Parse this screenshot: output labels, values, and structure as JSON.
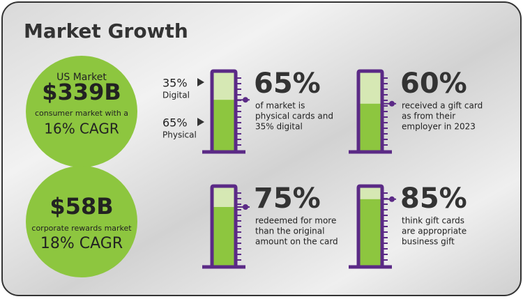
{
  "title": "Market Growth",
  "circles": [
    {
      "lines": [
        "US Market",
        "$339B",
        "consumer market with a",
        "16% CAGR"
      ]
    },
    {
      "lines": [
        "$58B",
        "corporate rewards market",
        "18% CAGR"
      ]
    }
  ],
  "gauge_labels": [
    {
      "percent": "35%",
      "name": "Digital"
    },
    {
      "percent": "65%",
      "name": "Physical"
    }
  ],
  "gauges": [
    {
      "value": 65,
      "label": "65%",
      "desc": [
        "of market is",
        "physical cards and",
        "35% digital"
      ]
    },
    {
      "value": 60,
      "label": "60%",
      "desc": [
        "received a gift card",
        "as from their",
        "employer in 2023"
      ]
    },
    {
      "value": 75,
      "label": "75%",
      "desc": [
        "redeemed for more",
        "than the original",
        "amount on the card"
      ]
    },
    {
      "value": 85,
      "label": "85%",
      "desc": [
        "think gift cards",
        "are appropriate",
        "business gift"
      ]
    }
  ]
}
